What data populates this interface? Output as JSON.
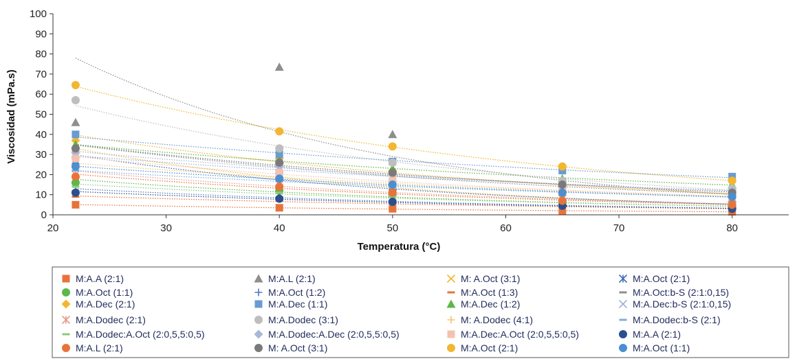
{
  "chart_data": {
    "type": "scatter",
    "xlabel": "Temperatura (°C)",
    "ylabel": "Viscosidad (mPa.s)",
    "xlim": [
      20,
      85
    ],
    "ylim": [
      0,
      100
    ],
    "xticks": [
      20,
      30,
      40,
      50,
      60,
      70,
      80
    ],
    "yticks": [
      0,
      10,
      20,
      30,
      40,
      50,
      60,
      70,
      80,
      90,
      100
    ],
    "grid": false,
    "legend_position": "bottom",
    "trendlines": "dotted",
    "series": [
      {
        "name": "M:A.A (2:1)",
        "marker": "square",
        "color": "#E8733A",
        "x": [
          22,
          40,
          50,
          65,
          80
        ],
        "y": [
          5,
          3.5,
          3,
          2,
          1.5
        ]
      },
      {
        "name": "M:A.L (2:1)",
        "marker": "triangle",
        "color": "#8E8E8E",
        "x": [
          22,
          40,
          50,
          65,
          80
        ],
        "y": [
          46,
          73.5,
          40,
          15,
          8
        ]
      },
      {
        "name": "M: A.Oct (3:1)",
        "marker": "x",
        "color": "#F2B632",
        "x": [
          22,
          40,
          50,
          65,
          80
        ],
        "y": [
          30,
          20,
          15,
          8,
          5
        ]
      },
      {
        "name": "M:A.Oct (2:1)",
        "marker": "asterisk",
        "color": "#3C6FB5",
        "x": [
          22,
          40,
          50,
          65,
          80
        ],
        "y": [
          27,
          19,
          14,
          8,
          5
        ]
      },
      {
        "name": "M:A.Oct (1:1)",
        "marker": "circle",
        "color": "#5CB84A",
        "x": [
          22,
          40,
          50,
          65,
          80
        ],
        "y": [
          16,
          12,
          10,
          6,
          4
        ]
      },
      {
        "name": "M:A.Oct (1:2)",
        "marker": "plus",
        "color": "#4A78C2",
        "x": [
          22,
          40,
          50,
          65,
          80
        ],
        "y": [
          12,
          9,
          7,
          5,
          3
        ]
      },
      {
        "name": "M:A.Oct (1:3)",
        "marker": "dash",
        "color": "#E8733A",
        "x": [
          22,
          40,
          50,
          65,
          80
        ],
        "y": [
          9,
          7,
          5.5,
          4,
          3
        ]
      },
      {
        "name": "M:A.Oct:b-S (2:1:0,15)",
        "marker": "dash",
        "color": "#8E8E8E",
        "x": [
          22,
          40,
          50,
          65,
          80
        ],
        "y": [
          33,
          25,
          20,
          14,
          10
        ]
      },
      {
        "name": "M:A.Dec (2:1)",
        "marker": "diamond",
        "color": "#F2B632",
        "x": [
          22,
          40,
          50,
          65,
          80
        ],
        "y": [
          37,
          28,
          22,
          15,
          10
        ]
      },
      {
        "name": "M:A.Dec (1:1)",
        "marker": "square",
        "color": "#6A9BD1",
        "x": [
          22,
          40,
          50,
          65,
          80
        ],
        "y": [
          40,
          30,
          26.5,
          22,
          19
        ]
      },
      {
        "name": "M:A.Dec (1:2)",
        "marker": "triangle",
        "color": "#5CB84A",
        "x": [
          22,
          40,
          50,
          65,
          80
        ],
        "y": [
          35,
          27,
          23,
          18,
          15
        ]
      },
      {
        "name": "M:A.Dec:b-S (2:1:0,15)",
        "marker": "x",
        "color": "#9FB3D6",
        "x": [
          22,
          40,
          50,
          65,
          80
        ],
        "y": [
          29,
          23,
          19,
          15,
          12
        ]
      },
      {
        "name": "M:A.Dodec (2:1)",
        "marker": "asterisk",
        "color": "#E89A8A",
        "x": [
          22,
          40,
          50,
          65,
          80
        ],
        "y": [
          20,
          15,
          12,
          8,
          5
        ]
      },
      {
        "name": "M:A.Dodec (3:1)",
        "marker": "circle",
        "color": "#BEBEBE",
        "x": [
          22,
          40,
          50,
          65,
          80
        ],
        "y": [
          57,
          33,
          26,
          17,
          13
        ]
      },
      {
        "name": "M: A.Dodec (4:1)",
        "marker": "plus",
        "color": "#F5C56A",
        "x": [
          22,
          40,
          50,
          65,
          80
        ],
        "y": [
          25,
          19,
          16,
          12,
          9
        ]
      },
      {
        "name": "M:A.Dodec:b-S (2:1)",
        "marker": "dash",
        "color": "#7FAEDB",
        "x": [
          22,
          40,
          50,
          65,
          80
        ],
        "y": [
          22,
          17,
          14,
          11,
          9
        ]
      },
      {
        "name": "M:A.Dodec:A.Oct (2:0,5,5:0,5)",
        "marker": "dash",
        "color": "#8CCB7A",
        "x": [
          22,
          40,
          50,
          65,
          80
        ],
        "y": [
          14,
          11,
          9,
          6,
          4
        ]
      },
      {
        "name": "M:A.Dodec:A.Dec (2:0,5,5:0,5)",
        "marker": "diamond",
        "color": "#A9B7D8",
        "x": [
          22,
          40,
          50,
          65,
          80
        ],
        "y": [
          31,
          24,
          20,
          15,
          12
        ]
      },
      {
        "name": "M:A.Dec:A.Oct (2:0,5,5:0,5)",
        "marker": "square",
        "color": "#F3C2B0",
        "x": [
          22,
          40,
          50,
          65,
          80
        ],
        "y": [
          28,
          21,
          17,
          12,
          9
        ]
      },
      {
        "name": "M:A.A (2:1)",
        "marker": "circle",
        "color": "#2B4F8E",
        "x": [
          22,
          40,
          50,
          65,
          80
        ],
        "y": [
          11,
          8,
          6.5,
          4.5,
          3
        ]
      },
      {
        "name": "M:A.L (2:1)",
        "marker": "circle",
        "color": "#E8733A",
        "x": [
          22,
          40,
          50,
          65,
          80
        ],
        "y": [
          19,
          14,
          11,
          7,
          5
        ]
      },
      {
        "name": "M: A.Oct (3:1)",
        "marker": "circle",
        "color": "#7A7A7A",
        "x": [
          22,
          40,
          50,
          65,
          80
        ],
        "y": [
          33,
          26,
          21,
          15,
          11
        ]
      },
      {
        "name": "M:A.Oct (2:1)",
        "marker": "circle",
        "color": "#F2B632",
        "x": [
          22,
          40,
          50,
          65,
          80
        ],
        "y": [
          64.5,
          41.5,
          34,
          24,
          17
        ]
      },
      {
        "name": "M:A.Oct (1:1)",
        "marker": "circle",
        "color": "#4A8FD1",
        "x": [
          22,
          40,
          50,
          65,
          80
        ],
        "y": [
          24,
          18,
          15,
          11,
          9
        ]
      }
    ]
  }
}
